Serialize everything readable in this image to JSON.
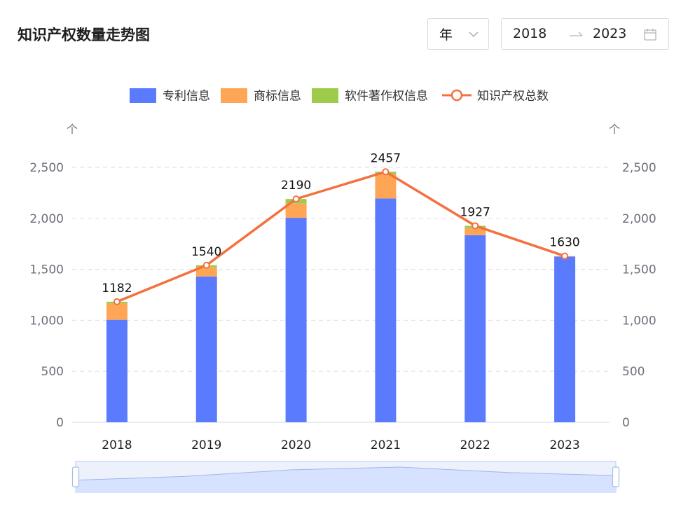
{
  "header": {
    "title": "知识产权数量走势图",
    "period_select": {
      "value": "年",
      "icon": "chevron-down-icon"
    },
    "date_range": {
      "start": "2018",
      "end": "2023",
      "separator_icon": "arrow-right-icon",
      "icon": "calendar-icon"
    }
  },
  "colors": {
    "patent": "#5b7bff",
    "trademark": "#ffa656",
    "software": "#9fcb4b",
    "total": "#f5703f",
    "grid": "#dfe3ef",
    "axis_text": "#6b6f7a",
    "slider_fill": "#d6e2ff",
    "slider_border": "#b7c9f3"
  },
  "chart_data": {
    "type": "bar",
    "stacked": true,
    "categories": [
      "2018",
      "2019",
      "2020",
      "2021",
      "2022",
      "2023"
    ],
    "series": [
      {
        "name": "专利信息",
        "type": "bar",
        "values": [
          1005,
          1430,
          2005,
          2195,
          1835,
          1625
        ]
      },
      {
        "name": "商标信息",
        "type": "bar",
        "values": [
          160,
          90,
          140,
          240,
          70,
          5
        ]
      },
      {
        "name": "软件著作权信息",
        "type": "bar",
        "values": [
          17,
          20,
          45,
          22,
          22,
          0
        ]
      },
      {
        "name": "知识产权总数",
        "type": "line",
        "values": [
          1182,
          1540,
          2190,
          2457,
          1927,
          1630
        ]
      }
    ],
    "data_labels": [
      "1182",
      "1540",
      "2190",
      "2457",
      "1927",
      "1630"
    ],
    "y_left": {
      "unit": "个",
      "ticks": [
        "0",
        "500",
        "1,000",
        "1,500",
        "2,000",
        "2,500"
      ],
      "ylim": [
        0,
        2500
      ]
    },
    "y_right": {
      "unit": "个",
      "ticks": [
        "0",
        "500",
        "1,000",
        "1,500",
        "2,000",
        "2,500"
      ],
      "ylim": [
        0,
        2500
      ]
    },
    "grid": true,
    "legend_position": "top-center",
    "data_zoom": {
      "start": 0,
      "end": 1
    }
  }
}
